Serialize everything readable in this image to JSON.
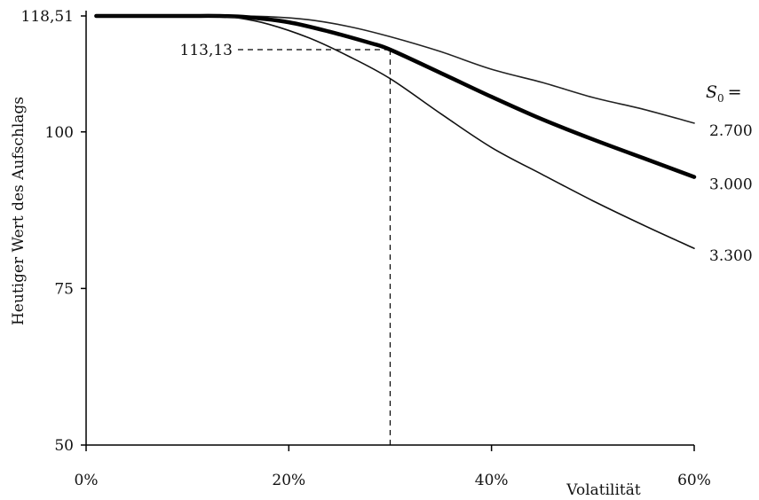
{
  "chart_data": {
    "type": "line",
    "xlabel": "Volatilität",
    "ylabel": "Heutiger Wert des Aufschlags",
    "xlim": [
      0,
      60
    ],
    "ylim": [
      50,
      118.51
    ],
    "x_ticks": [
      {
        "value": 0,
        "label": "0%"
      },
      {
        "value": 20,
        "label": "20%"
      },
      {
        "value": 40,
        "label": "40%"
      },
      {
        "value": 60,
        "label": "60%"
      }
    ],
    "y_ticks": [
      {
        "value": 50,
        "label": "50"
      },
      {
        "value": 75,
        "label": "75"
      },
      {
        "value": 100,
        "label": "100"
      },
      {
        "value": 118.51,
        "label": "118,51"
      }
    ],
    "legend": {
      "symbol": "S",
      "subscript": "0",
      "suffix": "="
    },
    "series": [
      {
        "name": "2.700",
        "x": [
          1,
          5,
          10,
          14,
          18,
          22,
          26,
          30,
          35,
          40,
          45,
          50,
          55,
          60
        ],
        "values": [
          118.51,
          118.51,
          118.51,
          118.51,
          118.4,
          117.9,
          116.8,
          115.2,
          112.8,
          110.0,
          107.9,
          105.5,
          103.6,
          101.4
        ],
        "line_weight": "thin",
        "color": "#222222"
      },
      {
        "name": "3.000",
        "x": [
          1,
          5,
          10,
          13,
          16,
          20,
          24,
          28,
          30,
          35,
          40,
          45,
          50,
          55,
          60
        ],
        "values": [
          118.51,
          118.51,
          118.51,
          118.51,
          118.3,
          117.5,
          116.0,
          114.2,
          113.13,
          109.4,
          105.6,
          102.0,
          98.8,
          95.8,
          92.8
        ],
        "line_weight": "thick",
        "color": "#000000"
      },
      {
        "name": "3.300",
        "x": [
          1,
          5,
          10,
          13,
          15,
          18,
          22,
          26,
          30,
          35,
          40,
          45,
          50,
          55,
          60
        ],
        "values": [
          118.51,
          118.51,
          118.51,
          118.51,
          118.2,
          117.2,
          115.0,
          112.0,
          108.5,
          102.9,
          97.5,
          93.2,
          89.0,
          85.1,
          81.4
        ],
        "line_weight": "thin",
        "color": "#111111"
      }
    ],
    "annotation": {
      "x": 30,
      "y": 113.13,
      "label": "113,13",
      "style": "dashed"
    },
    "grid": false
  }
}
